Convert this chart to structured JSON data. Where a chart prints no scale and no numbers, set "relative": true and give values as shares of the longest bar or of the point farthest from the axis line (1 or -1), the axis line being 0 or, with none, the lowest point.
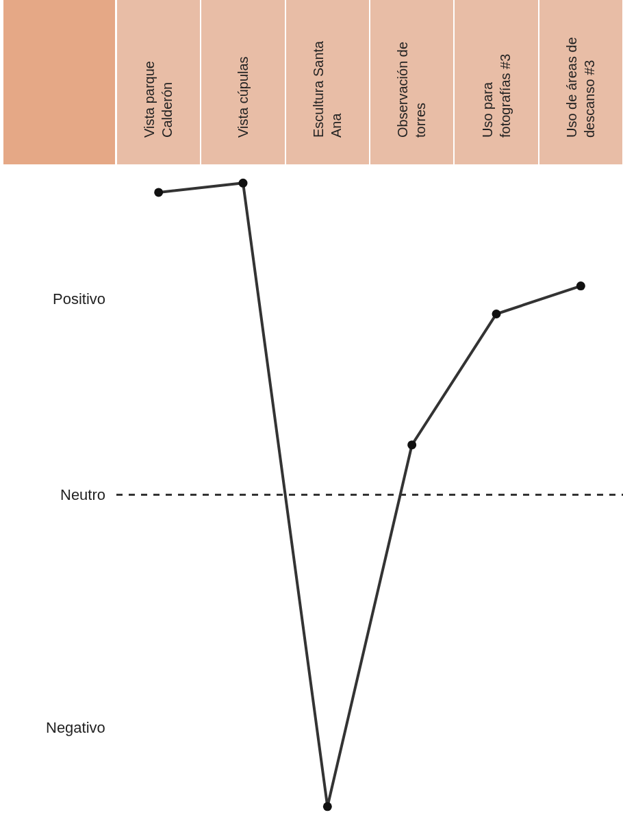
{
  "chart_data": {
    "type": "line",
    "categories": [
      "Vista parque Calderón",
      "Vista cúpulas",
      "Escultura Santa Ana",
      "Observación de torres",
      "Uso para fotografías #3",
      "Uso de áreas de descanso #3"
    ],
    "series": [
      {
        "color": "#333333",
        "values": [
          0.97,
          1,
          -1,
          0.16,
          0.58,
          0.67
        ]
      }
    ],
    "relative": true,
    "annotations": [
      "Positivo",
      "Negativo"
    ],
    "ref_lines": [
      {
        "axis": "y",
        "value": 0,
        "label": "Neutro",
        "color": "#333333",
        "line_style": "dashed"
      }
    ],
    "grid": false,
    "marker": "circle",
    "line_style": "solid"
  }
}
